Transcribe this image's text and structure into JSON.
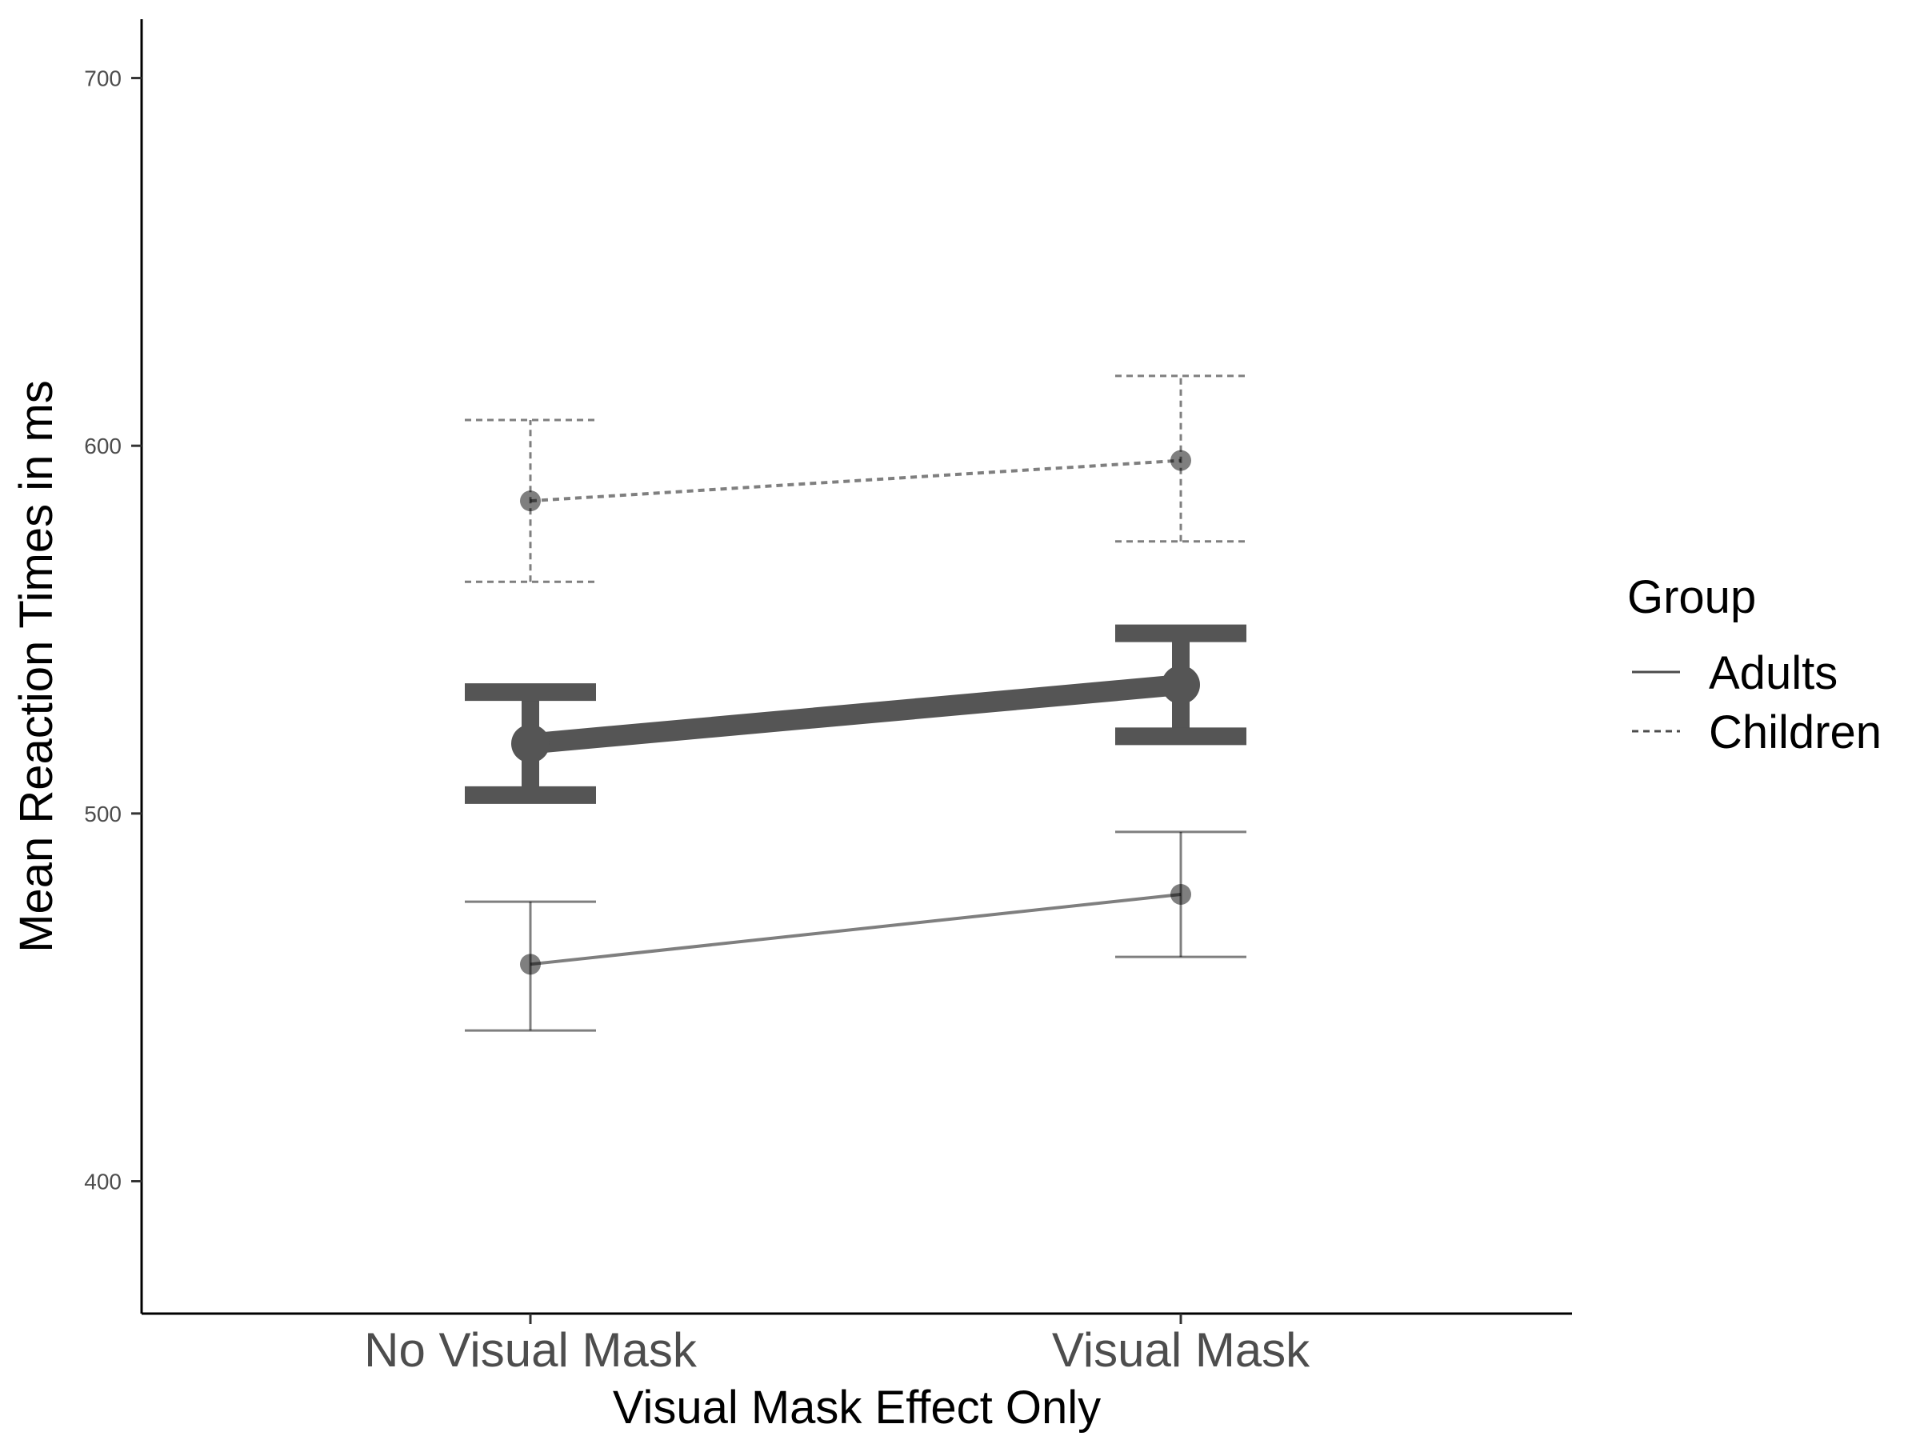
{
  "chart_data": {
    "type": "line",
    "categories": [
      "No Visual Mask",
      "Visual Mask"
    ],
    "xlabel": "Visual Mask Effect Only",
    "ylabel": "Mean Reaction Times in ms",
    "ylim": [
      364,
      716
    ],
    "yticks": [
      400,
      500,
      600,
      700
    ],
    "grid": false,
    "legend": {
      "title": "Group",
      "placement": "right"
    },
    "series": [
      {
        "name": "Adults",
        "linetype": "solid",
        "color": "#000000",
        "values": [
          459,
          478
        ],
        "lower": [
          441,
          461
        ],
        "upper": [
          476,
          495
        ]
      },
      {
        "name": "Children",
        "linetype": "dashed",
        "color": "#000000",
        "values": [
          585,
          596
        ],
        "lower": [
          563,
          574
        ],
        "upper": [
          607,
          619
        ]
      },
      {
        "name": "",
        "linetype": "solid",
        "color": "#555555",
        "values": [
          519,
          535
        ],
        "lower": [
          505,
          521
        ],
        "upper": [
          533,
          549
        ]
      }
    ]
  }
}
